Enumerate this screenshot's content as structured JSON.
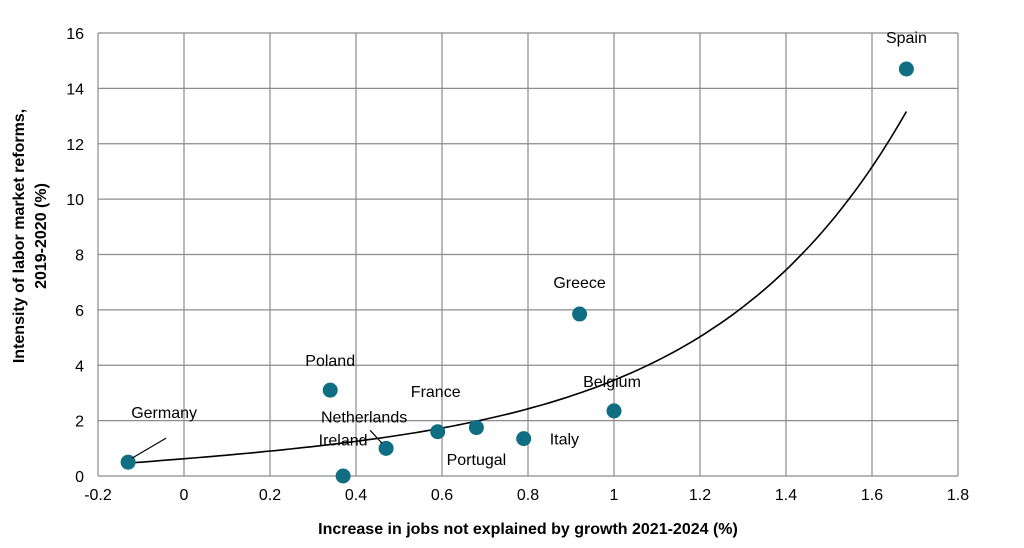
{
  "chart_data": {
    "type": "scatter",
    "title": "",
    "xlabel": "Increase in jobs not explained by growth 2021-2024  (%)",
    "ylabel_line1": "Intensity of labor market reforms,",
    "ylabel_line2": "2019-2020  (%)",
    "xlim": [
      -0.2,
      1.8
    ],
    "ylim": [
      0,
      16
    ],
    "x_ticks": [
      -0.2,
      0,
      0.2,
      0.4,
      0.6,
      0.8,
      1,
      1.2,
      1.4,
      1.6,
      1.8
    ],
    "x_tick_labels": [
      "-0.2",
      "0",
      "0.2",
      "0.4",
      "0.6",
      "0.8",
      "1",
      "1.2",
      "1.4",
      "1.6",
      "1.8"
    ],
    "y_ticks": [
      0,
      2,
      4,
      6,
      8,
      10,
      12,
      14,
      16
    ],
    "y_tick_labels": [
      "0",
      "2",
      "4",
      "6",
      "8",
      "10",
      "12",
      "14",
      "16"
    ],
    "grid": true,
    "marker_color": "#0f6e82",
    "trendline": "exponential",
    "points": [
      {
        "label": "Germany",
        "x": -0.13,
        "y": 0.5
      },
      {
        "label": "Poland",
        "x": 0.34,
        "y": 3.1
      },
      {
        "label": "Ireland",
        "x": 0.37,
        "y": 0.0
      },
      {
        "label": "Netherlands",
        "x": 0.47,
        "y": 1.0
      },
      {
        "label": "France",
        "x": 0.59,
        "y": 1.6
      },
      {
        "label": "Portugal",
        "x": 0.68,
        "y": 1.75
      },
      {
        "label": "Italy",
        "x": 0.79,
        "y": 1.35
      },
      {
        "label": "Greece",
        "x": 0.92,
        "y": 5.85
      },
      {
        "label": "Belgium",
        "x": 1.0,
        "y": 2.35
      },
      {
        "label": "Spain",
        "x": 1.68,
        "y": 14.7
      }
    ]
  }
}
